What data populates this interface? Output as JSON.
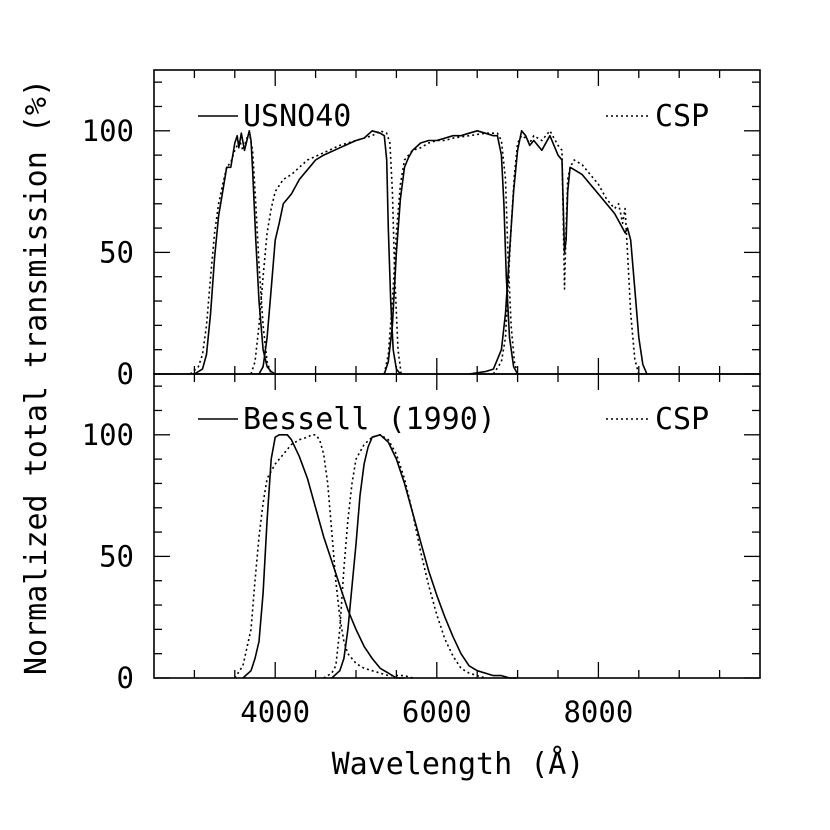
{
  "chart_data": [
    {
      "type": "line",
      "panel": "top",
      "xlim": [
        2500,
        10000
      ],
      "ylim": [
        0,
        125
      ],
      "xticks_major": [
        4000,
        6000,
        8000
      ],
      "yticks_major": [
        0,
        50,
        100
      ],
      "ytick_labels": [
        "0",
        "50",
        "100"
      ],
      "legend": [
        {
          "label": "USNO40",
          "style": "solid",
          "position": "top-left"
        },
        {
          "label": "CSP",
          "style": "dotted",
          "position": "top-right"
        }
      ],
      "series": [
        {
          "name": "USNO40 u",
          "style": "solid",
          "x": [
            3000,
            3100,
            3150,
            3200,
            3250,
            3300,
            3350,
            3400,
            3450,
            3500,
            3530,
            3550,
            3580,
            3620,
            3650,
            3680,
            3700,
            3720,
            3760,
            3800,
            3850,
            3900,
            3950,
            4000
          ],
          "y": [
            0,
            2,
            8,
            25,
            48,
            65,
            75,
            85,
            85,
            95,
            98,
            93,
            99,
            92,
            96,
            100,
            96,
            84,
            55,
            30,
            10,
            3,
            1,
            0
          ]
        },
        {
          "name": "CSP u",
          "style": "dotted",
          "x": [
            2950,
            3050,
            3100,
            3150,
            3200,
            3250,
            3300,
            3350,
            3400,
            3450,
            3500,
            3530,
            3560,
            3600,
            3650,
            3680,
            3720,
            3760,
            3800,
            3850,
            3900,
            3950
          ],
          "y": [
            0,
            3,
            8,
            20,
            40,
            58,
            70,
            78,
            85,
            87,
            92,
            94,
            96,
            92,
            97,
            99,
            92,
            70,
            45,
            20,
            5,
            0
          ]
        },
        {
          "name": "USNO40 B",
          "style": "solid",
          "x": [
            3800,
            3850,
            3900,
            3950,
            4000,
            4050,
            4100,
            4200,
            4300,
            4400,
            4500,
            4600,
            4800,
            5000,
            5100,
            5200,
            5300,
            5350,
            5380,
            5400,
            5430,
            5460,
            5500,
            5550
          ],
          "y": [
            0,
            3,
            15,
            35,
            55,
            62,
            70,
            74,
            80,
            84,
            88,
            90,
            93,
            96,
            97,
            100,
            99,
            98,
            88,
            60,
            30,
            10,
            2,
            0
          ]
        },
        {
          "name": "CSP B",
          "style": "dotted",
          "x": [
            3700,
            3750,
            3800,
            3850,
            3900,
            3950,
            4000,
            4100,
            4200,
            4300,
            4400,
            4600,
            4800,
            5000,
            5200,
            5300,
            5380,
            5420,
            5450,
            5480,
            5520,
            5560
          ],
          "y": [
            0,
            5,
            20,
            40,
            58,
            68,
            75,
            80,
            82,
            85,
            88,
            91,
            94,
            96,
            98,
            100,
            99,
            95,
            75,
            40,
            10,
            0
          ]
        },
        {
          "name": "USNO40 V",
          "style": "solid",
          "x": [
            5350,
            5400,
            5450,
            5500,
            5550,
            5600,
            5650,
            5700,
            5800,
            5900,
            6000,
            6100,
            6200,
            6300,
            6400,
            6500,
            6600,
            6700,
            6750,
            6800,
            6830,
            6860,
            6900,
            6950,
            7000
          ],
          "y": [
            0,
            5,
            20,
            50,
            72,
            85,
            89,
            92,
            95,
            96,
            96,
            97,
            98,
            98,
            99,
            100,
            99,
            98,
            98,
            90,
            70,
            40,
            15,
            3,
            0
          ]
        },
        {
          "name": "CSP V",
          "style": "dotted",
          "x": [
            5350,
            5400,
            5450,
            5500,
            5550,
            5600,
            5700,
            5800,
            5900,
            6000,
            6100,
            6200,
            6400,
            6600,
            6750,
            6800,
            6850,
            6880,
            6920,
            6960,
            7000
          ],
          "y": [
            0,
            8,
            30,
            58,
            78,
            88,
            92,
            93,
            95,
            96,
            96,
            97,
            98,
            99,
            99,
            96,
            80,
            50,
            20,
            5,
            0
          ]
        },
        {
          "name": "USNO40 I",
          "style": "solid",
          "x": [
            6400,
            6600,
            6700,
            6800,
            6850,
            6900,
            6950,
            7000,
            7050,
            7100,
            7150,
            7200,
            7300,
            7400,
            7500,
            7550,
            7580,
            7600,
            7620,
            7650,
            7700,
            7800,
            7900,
            8000,
            8100,
            8200,
            8300,
            8330,
            8360,
            8400,
            8450,
            8500,
            8550,
            8600
          ],
          "y": [
            0,
            1,
            2,
            10,
            25,
            50,
            75,
            92,
            100,
            98,
            94,
            96,
            92,
            98,
            90,
            88,
            50,
            55,
            75,
            85,
            84,
            82,
            78,
            74,
            70,
            66,
            60,
            58,
            60,
            55,
            35,
            15,
            4,
            0
          ]
        },
        {
          "name": "CSP I",
          "style": "dotted",
          "x": [
            6700,
            6800,
            6850,
            6880,
            6920,
            6960,
            7000,
            7050,
            7100,
            7150,
            7200,
            7300,
            7400,
            7500,
            7550,
            7580,
            7600,
            7620,
            7650,
            7700,
            7800,
            7900,
            8000,
            8100,
            8200,
            8250,
            8300,
            8330,
            8360,
            8400,
            8450,
            8500
          ],
          "y": [
            0,
            5,
            15,
            35,
            60,
            82,
            95,
            98,
            97,
            95,
            98,
            96,
            100,
            94,
            92,
            35,
            60,
            80,
            85,
            88,
            86,
            82,
            78,
            72,
            68,
            70,
            62,
            68,
            50,
            25,
            6,
            0
          ]
        }
      ]
    },
    {
      "type": "line",
      "panel": "bottom",
      "xlim": [
        2500,
        10000
      ],
      "ylim": [
        0,
        125
      ],
      "xticks_major": [
        4000,
        6000,
        8000
      ],
      "xtick_labels": [
        "4000",
        "6000",
        "8000"
      ],
      "yticks_major": [
        0,
        50,
        100
      ],
      "ytick_labels": [
        "0",
        "50",
        "100"
      ],
      "legend": [
        {
          "label": "Bessell (1990)",
          "style": "solid",
          "position": "top-left"
        },
        {
          "label": "CSP",
          "style": "dotted",
          "position": "top-right"
        }
      ],
      "series": [
        {
          "name": "Bessell B",
          "style": "solid",
          "x": [
            3600,
            3700,
            3750,
            3800,
            3850,
            3900,
            3950,
            4000,
            4050,
            4100,
            4150,
            4200,
            4300,
            4400,
            4500,
            4600,
            4700,
            4800,
            4900,
            5000,
            5100,
            5200,
            5300,
            5400,
            5500,
            5600
          ],
          "y": [
            0,
            3,
            8,
            15,
            35,
            65,
            90,
            99,
            100,
            100,
            100,
            98,
            91,
            82,
            70,
            58,
            48,
            38,
            28,
            20,
            13,
            8,
            4,
            2,
            0,
            0
          ]
        },
        {
          "name": "CSP B",
          "style": "dotted",
          "x": [
            3500,
            3600,
            3700,
            3750,
            3800,
            3850,
            3900,
            4000,
            4100,
            4200,
            4300,
            4400,
            4450,
            4500,
            4550,
            4600,
            4650,
            4700,
            4750,
            4800,
            4850,
            4900,
            5000,
            5100,
            5200,
            5300,
            5400,
            5500,
            5600,
            5700
          ],
          "y": [
            0,
            5,
            20,
            40,
            58,
            72,
            82,
            88,
            92,
            96,
            98,
            99,
            100,
            100,
            98,
            92,
            80,
            60,
            40,
            25,
            15,
            10,
            6,
            4,
            3,
            2,
            1,
            1,
            1,
            0
          ]
        },
        {
          "name": "Bessell V",
          "style": "solid",
          "x": [
            4700,
            4800,
            4850,
            4900,
            5000,
            5050,
            5100,
            5150,
            5200,
            5300,
            5400,
            5500,
            5600,
            5700,
            5800,
            5900,
            6000,
            6100,
            6200,
            6300,
            6400,
            6500,
            6600,
            6700,
            6800,
            6900,
            7000
          ],
          "y": [
            0,
            3,
            8,
            20,
            55,
            75,
            88,
            95,
            99,
            100,
            97,
            90,
            80,
            68,
            56,
            44,
            34,
            25,
            17,
            10,
            5,
            3,
            2,
            1,
            1,
            0,
            0
          ]
        },
        {
          "name": "CSP V",
          "style": "dotted",
          "x": [
            4600,
            4700,
            4750,
            4800,
            4850,
            4900,
            4950,
            5000,
            5100,
            5200,
            5300,
            5400,
            5500,
            5600,
            5700,
            5800,
            5900,
            6000,
            6100,
            6200,
            6300,
            6400,
            6500,
            6600
          ],
          "y": [
            0,
            2,
            5,
            20,
            45,
            65,
            80,
            90,
            96,
            99,
            100,
            98,
            92,
            82,
            68,
            52,
            38,
            26,
            16,
            9,
            4,
            2,
            1,
            0
          ]
        }
      ]
    }
  ],
  "axes": {
    "xlabel": "Wavelength (Å)",
    "ylabel": "Normalized total transmission (%)"
  }
}
